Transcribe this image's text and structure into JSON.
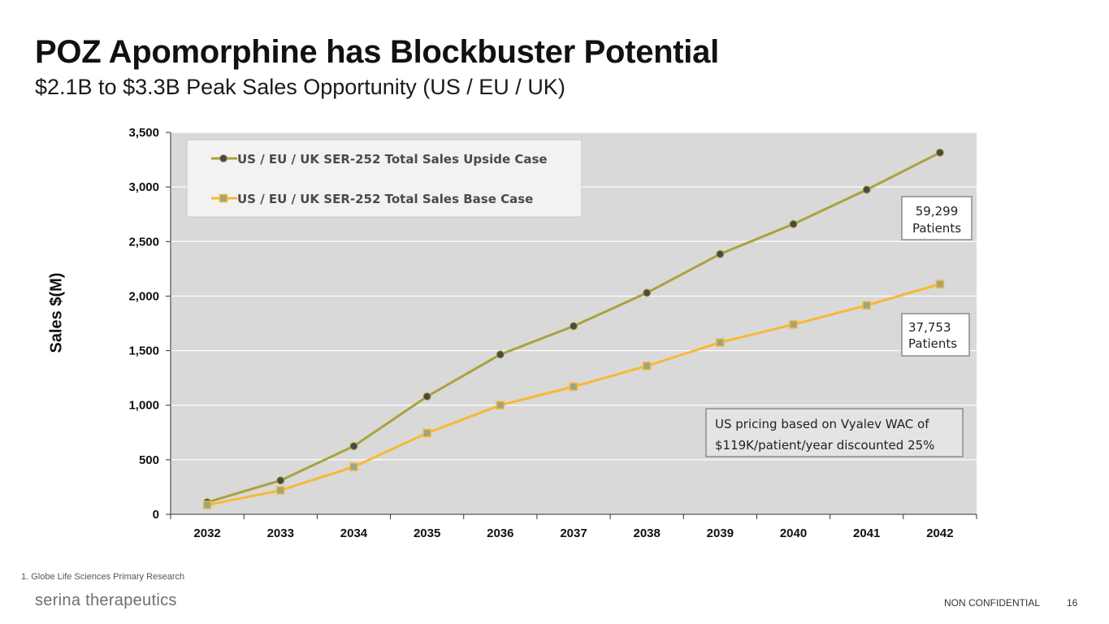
{
  "slide": {
    "title": "POZ Apomorphine has Blockbuster Potential",
    "subtitle": "$2.1B to $3.3B Peak Sales Opportunity (US / EU / UK)",
    "footnote": "1.  Globe Life Sciences Primary Research",
    "brand": "serina therapeutics",
    "classification": "NON CONFIDENTIAL",
    "page_number": "16"
  },
  "chart_data": {
    "type": "line",
    "title": "",
    "xlabel": "",
    "ylabel": "Sales $(M)",
    "ylim": [
      0,
      3500
    ],
    "y_ticks": [
      0,
      500,
      1000,
      1500,
      2000,
      2500,
      3000,
      3500
    ],
    "y_tick_labels": [
      "0",
      "500",
      "1,000",
      "1,500",
      "2,000",
      "2,500",
      "3,000",
      "3,500"
    ],
    "grid": true,
    "legend_position": "top-left",
    "categories": [
      "2032",
      "2033",
      "2034",
      "2035",
      "2036",
      "2037",
      "2038",
      "2039",
      "2040",
      "2041",
      "2042"
    ],
    "series": [
      {
        "name": "US / EU / UK SER-252 Total Sales Upside Case",
        "color": "#a9a23c",
        "marker": "circle",
        "marker_color": "#4a4a44",
        "values": [
          110,
          310,
          625,
          1080,
          1465,
          1725,
          2030,
          2385,
          2660,
          2975,
          3315
        ]
      },
      {
        "name": "US / EU / UK SER-252 Total Sales Base Case",
        "color": "#f8b833",
        "marker": "square",
        "marker_color": "#9aa48a",
        "values": [
          85,
          220,
          435,
          745,
          1000,
          1170,
          1360,
          1575,
          1740,
          1915,
          2110
        ]
      }
    ],
    "annotations": [
      {
        "lines": [
          "59,299",
          "Patients"
        ],
        "series": 0
      },
      {
        "lines": [
          "37,753",
          "Patients"
        ],
        "series": 1
      },
      {
        "lines": [
          "US pricing based on Vyalev WAC of",
          "$119K/patient/year discounted 25%"
        ]
      }
    ]
  },
  "colors": {
    "plot_background": "#d9d9d9",
    "legend_background": "#f2f2f2"
  }
}
